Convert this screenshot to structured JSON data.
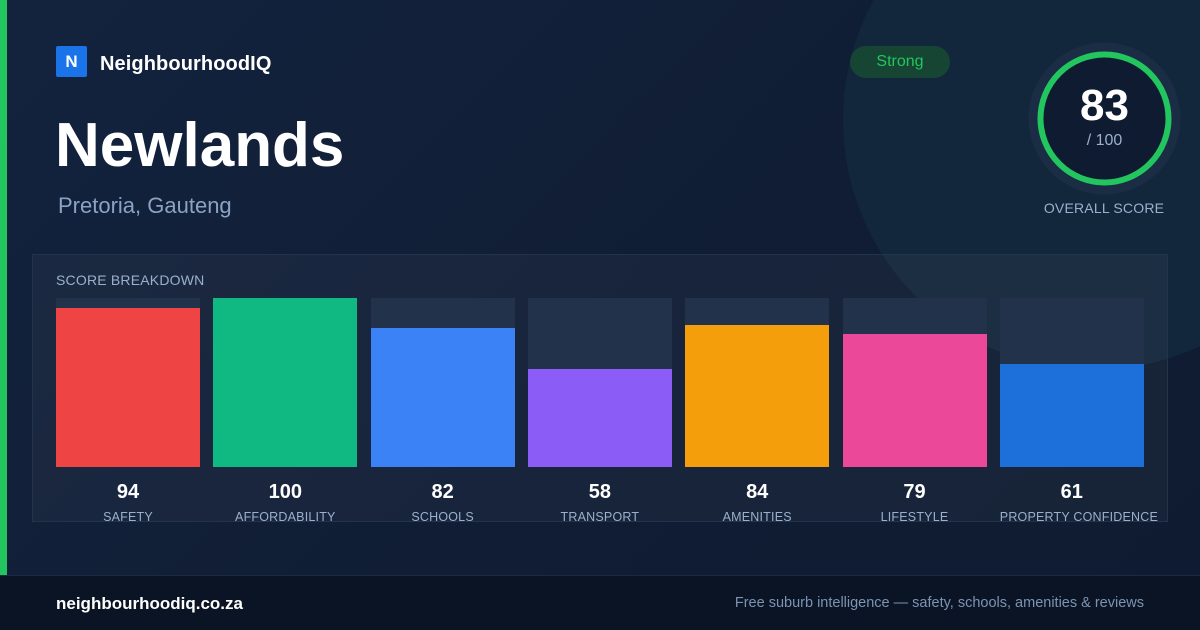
{
  "brand": {
    "logo_letter": "N",
    "name": "NeighbourhoodIQ",
    "logo_color": "#1a73e8"
  },
  "suburb": {
    "name": "Newlands",
    "location": "Pretoria, Gauteng"
  },
  "badge": {
    "label": "Strong",
    "color": "#22c55e"
  },
  "overall": {
    "score": "83",
    "max": "/ 100",
    "fraction": 0.83,
    "label": "OVERALL SCORE",
    "ring_color": "#22c55e"
  },
  "breakdown": {
    "title": "SCORE BREAKDOWN",
    "items": [
      {
        "value": "94",
        "label": "SAFETY",
        "color": "#ef4444"
      },
      {
        "value": "100",
        "label": "AFFORDABILITY",
        "color": "#10b981"
      },
      {
        "value": "82",
        "label": "SCHOOLS",
        "color": "#3b82f6"
      },
      {
        "value": "58",
        "label": "TRANSPORT",
        "color": "#8b5cf6"
      },
      {
        "value": "84",
        "label": "AMENITIES",
        "color": "#f59e0b"
      },
      {
        "value": "79",
        "label": "LIFESTYLE",
        "color": "#ec4899"
      },
      {
        "value": "61",
        "label": "PROPERTY CONFIDENCE",
        "color": "#1d6fd9"
      }
    ]
  },
  "footer": {
    "url": "neighbourhoodiq.co.za",
    "tagline": "Free suburb intelligence — safety, schools, amenities & reviews"
  }
}
